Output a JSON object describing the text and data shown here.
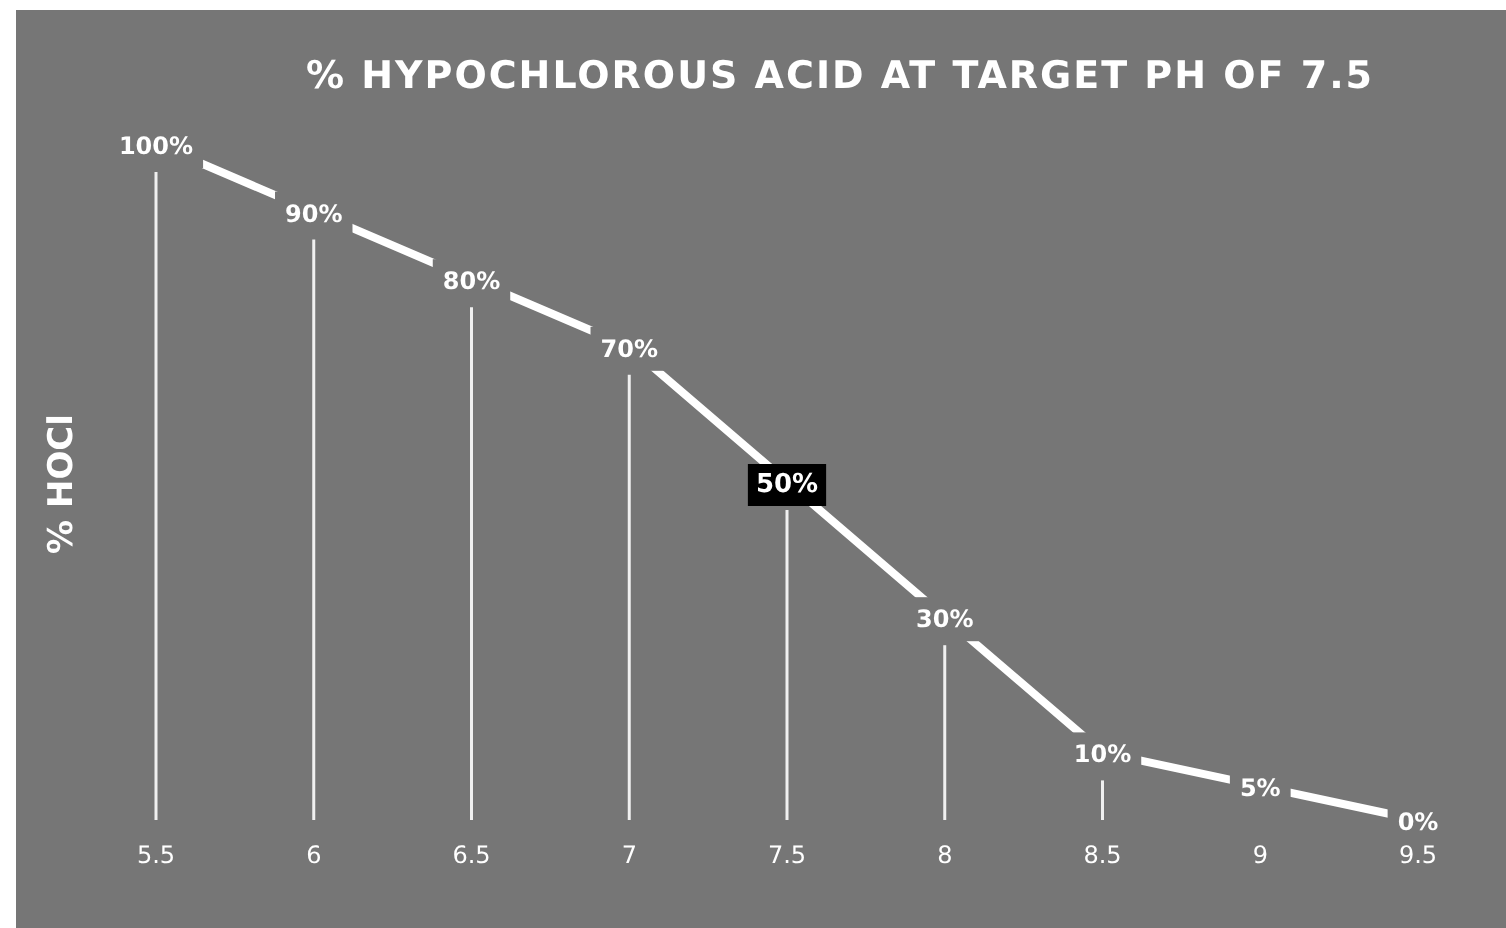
{
  "chart_data": {
    "type": "line",
    "title": "% HYPOCHLOROUS ACID AT TARGET PH OF 7.5",
    "ylabel": "% HOCl",
    "categories": [
      "5.5",
      "6",
      "6.5",
      "7",
      "7.5",
      "8",
      "8.5",
      "9",
      "9.5"
    ],
    "series": [
      {
        "color": "#ffffff",
        "values": [
          100,
          90,
          80,
          70,
          50,
          30,
          10,
          5,
          0
        ],
        "value_labels": [
          "100%",
          "90%",
          "80%",
          "70%",
          null,
          "30%",
          "10%",
          "5%",
          "0%"
        ]
      }
    ],
    "annotations": [
      {
        "text": "50%",
        "x": "7.5",
        "y": 50
      }
    ],
    "grid": "x",
    "marker": "none",
    "line_style": "solid"
  }
}
